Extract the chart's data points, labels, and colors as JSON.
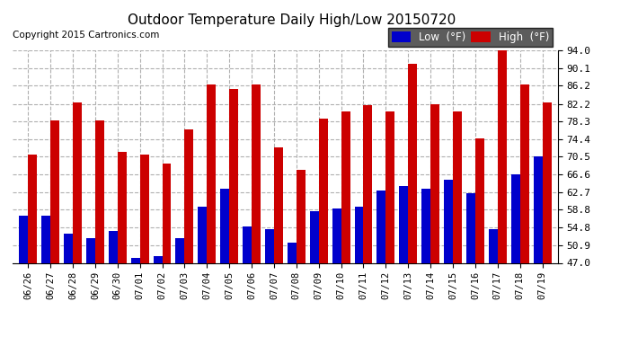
{
  "title": "Outdoor Temperature Daily High/Low 20150720",
  "copyright": "Copyright 2015 Cartronics.com",
  "legend_low": "Low  (°F)",
  "legend_high": "High  (°F)",
  "low_color": "#0000cc",
  "high_color": "#cc0000",
  "background_color": "#ffffff",
  "plot_bg": "#ffffff",
  "grid_color": "#b0b0b0",
  "ylim_min": 47.0,
  "ylim_max": 94.0,
  "yticks": [
    47.0,
    50.9,
    54.8,
    58.8,
    62.7,
    66.6,
    70.5,
    74.4,
    78.3,
    82.2,
    86.2,
    90.1,
    94.0
  ],
  "dates": [
    "06/26",
    "06/27",
    "06/28",
    "06/29",
    "06/30",
    "07/01",
    "07/02",
    "07/03",
    "07/04",
    "07/05",
    "07/06",
    "07/07",
    "07/08",
    "07/09",
    "07/10",
    "07/11",
    "07/12",
    "07/13",
    "07/14",
    "07/15",
    "07/16",
    "07/17",
    "07/18",
    "07/19"
  ],
  "highs": [
    71.0,
    78.5,
    82.5,
    78.5,
    71.5,
    71.0,
    69.0,
    76.5,
    86.5,
    85.5,
    86.5,
    72.5,
    67.5,
    79.0,
    80.5,
    82.0,
    80.5,
    91.0,
    82.2,
    80.5,
    74.5,
    94.0,
    86.5,
    82.5
  ],
  "lows": [
    57.5,
    57.5,
    53.5,
    52.5,
    54.0,
    48.0,
    48.5,
    52.5,
    59.5,
    63.5,
    55.0,
    54.5,
    51.5,
    58.5,
    59.0,
    59.5,
    63.0,
    64.0,
    63.5,
    65.5,
    62.5,
    54.5,
    66.5,
    70.5
  ]
}
